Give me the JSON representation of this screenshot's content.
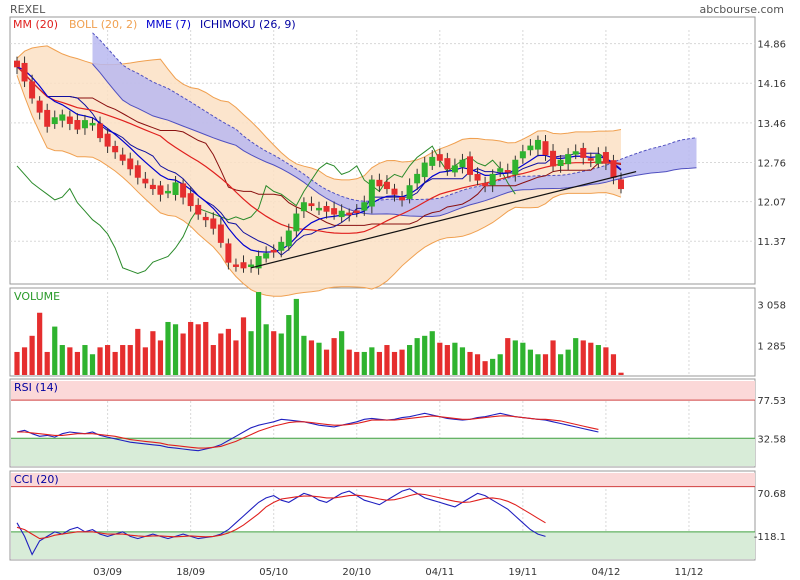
{
  "header": {
    "symbol": "REXEL",
    "brand": "abcbourse.com",
    "legend": [
      {
        "label": "MM (20)",
        "color": "#e0201e"
      },
      {
        "label": "BOLL (20, 2)",
        "color": "#f0a050"
      },
      {
        "label": "MME (7)",
        "color": "#0000d0"
      },
      {
        "label": "ICHIMOKU (26, 9)",
        "color": "#0000a0"
      }
    ]
  },
  "colors": {
    "up": "#2fb32f",
    "down": "#e52e2e",
    "boll_fill": "#fbe0c4",
    "cloud_fill": "#b8b8f0",
    "rsi_line": "#2020c0",
    "rsi_signal": "#e0201e",
    "overbought_band": "#fbd8d8",
    "oversold_band": "#d8ecd8"
  },
  "chart_data": [
    {
      "type": "candlestick",
      "title": "REXEL",
      "y_ticks": [
        "14.86",
        "14.16",
        "13.46",
        "12.76",
        "12.07",
        "11.37"
      ],
      "ylim": [
        10.65,
        15.1
      ],
      "x_ticks": [
        "03/09",
        "18/09",
        "05/10",
        "20/10",
        "04/11",
        "19/11",
        "04/12",
        "11/12"
      ],
      "x_tick_index": [
        12,
        23,
        34,
        45,
        56,
        67,
        78,
        89
      ],
      "close": [
        14.45,
        14.2,
        13.9,
        13.65,
        13.4,
        13.55,
        13.6,
        13.45,
        13.35,
        13.5,
        13.45,
        13.2,
        13.05,
        12.95,
        12.8,
        12.65,
        12.5,
        12.4,
        12.3,
        12.2,
        12.25,
        12.4,
        12.15,
        12.0,
        11.85,
        11.75,
        11.6,
        11.35,
        11.0,
        10.95,
        10.9,
        10.95,
        11.1,
        11.15,
        11.2,
        11.35,
        11.55,
        11.85,
        12.05,
        12.0,
        11.95,
        11.9,
        11.85,
        11.9,
        11.85,
        11.9,
        12.05,
        12.45,
        12.35,
        12.3,
        12.2,
        12.1,
        12.35,
        12.55,
        12.75,
        12.85,
        12.8,
        12.65,
        12.7,
        12.8,
        12.55,
        12.45,
        12.35,
        12.55,
        12.65,
        12.6,
        12.8,
        12.95,
        13.05,
        13.15,
        12.9,
        12.7,
        12.8,
        12.9,
        12.95,
        12.85,
        12.8,
        12.9,
        12.75,
        12.5,
        12.3
      ],
      "ichimoku": {
        "kijun_level": 12.76,
        "tenkan_level": 12.35
      },
      "trendline": {
        "from": [
          31,
          10.9
        ],
        "to": [
          82,
          12.6
        ]
      }
    },
    {
      "type": "bar",
      "title": "VOLUME",
      "y_ticks": [
        "3 058",
        "1 285"
      ],
      "ymax": 3600,
      "values": [
        1000,
        1200,
        1700,
        2700,
        1000,
        2100,
        1300,
        1200,
        1000,
        1300,
        900,
        1200,
        1300,
        1000,
        1300,
        1300,
        2000,
        1200,
        1900,
        1500,
        2300,
        2200,
        1800,
        2300,
        2200,
        2300,
        1300,
        1800,
        2000,
        1500,
        2500,
        1900,
        3600,
        2200,
        1900,
        1800,
        2600,
        3300,
        1700,
        1500,
        1400,
        1100,
        1600,
        1900,
        1100,
        1000,
        1000,
        1200,
        1000,
        1300,
        1000,
        1100,
        1300,
        1600,
        1700,
        1900,
        1400,
        1300,
        1400,
        1200,
        1000,
        900,
        600,
        700,
        900,
        1600,
        1500,
        1400,
        1100,
        900,
        900,
        1500,
        900,
        1100,
        1600,
        1500,
        1400,
        1300,
        1200,
        900,
        100
      ]
    },
    {
      "type": "line",
      "title": "RSI (14)",
      "y_ticks": [
        "77.53",
        "32.58"
      ],
      "ylim": [
        0,
        100
      ],
      "series": [
        {
          "values": [
            40,
            42,
            38,
            35,
            36,
            34,
            38,
            40,
            39,
            38,
            40,
            36,
            34,
            32,
            30,
            28,
            27,
            26,
            25,
            24,
            22,
            21,
            20,
            19,
            18,
            20,
            22,
            25,
            30,
            35,
            40,
            45,
            48,
            50,
            52,
            55,
            54,
            53,
            52,
            50,
            48,
            47,
            46,
            48,
            50,
            52,
            55,
            56,
            55,
            54,
            55,
            57,
            58,
            60,
            62,
            60,
            58,
            56,
            55,
            54,
            55,
            57,
            58,
            60,
            62,
            60,
            58,
            57,
            56,
            55,
            54,
            52,
            50,
            48,
            46,
            44,
            42,
            40
          ]
        },
        {
          "values": [
            40,
            40,
            39,
            38,
            37,
            36,
            36,
            37,
            38,
            38,
            38,
            37,
            36,
            35,
            33,
            31,
            30,
            29,
            28,
            27,
            25,
            24,
            23,
            22,
            21,
            21,
            22,
            23,
            26,
            29,
            33,
            37,
            41,
            44,
            47,
            49,
            51,
            52,
            52,
            51,
            50,
            49,
            48,
            48,
            49,
            50,
            52,
            54,
            54,
            54,
            54,
            55,
            56,
            57,
            58,
            59,
            58,
            57,
            56,
            55,
            55,
            56,
            57,
            58,
            59,
            59,
            58,
            57,
            56,
            55,
            55,
            54,
            53,
            51,
            49,
            47,
            45,
            43
          ]
        }
      ]
    },
    {
      "type": "line",
      "title": "CCI (20)",
      "y_ticks": [
        "70.68",
        "-118.1"
      ],
      "ylim": [
        -220,
        160
      ],
      "series": [
        {
          "values": [
            -60,
            -120,
            -200,
            -140,
            -120,
            -100,
            -110,
            -90,
            -80,
            -100,
            -90,
            -110,
            -120,
            -110,
            -100,
            -120,
            -130,
            -120,
            -110,
            -120,
            -130,
            -120,
            -110,
            -120,
            -130,
            -125,
            -120,
            -110,
            -90,
            -60,
            -30,
            0,
            30,
            50,
            60,
            40,
            30,
            50,
            70,
            60,
            40,
            30,
            50,
            70,
            80,
            60,
            40,
            30,
            20,
            40,
            60,
            80,
            90,
            70,
            50,
            40,
            30,
            20,
            10,
            30,
            50,
            70,
            60,
            40,
            20,
            0,
            -30,
            -60,
            -90,
            -110,
            -120
          ]
        },
        {
          "values": [
            -80,
            -90,
            -110,
            -130,
            -125,
            -115,
            -110,
            -105,
            -100,
            -100,
            -100,
            -105,
            -110,
            -110,
            -110,
            -115,
            -118,
            -120,
            -118,
            -118,
            -120,
            -122,
            -120,
            -118,
            -120,
            -122,
            -120,
            -115,
            -105,
            -90,
            -70,
            -45,
            -20,
            10,
            30,
            45,
            50,
            55,
            58,
            58,
            55,
            50,
            50,
            55,
            60,
            62,
            58,
            52,
            45,
            40,
            42,
            50,
            60,
            68,
            65,
            58,
            50,
            42,
            35,
            30,
            32,
            40,
            48,
            50,
            45,
            35,
            20,
            0,
            -20,
            -40,
            -60
          ]
        }
      ]
    }
  ],
  "x_labels": [
    "03/09",
    "18/09",
    "05/10",
    "20/10",
    "04/11",
    "19/11",
    "04/12",
    "11/12"
  ]
}
